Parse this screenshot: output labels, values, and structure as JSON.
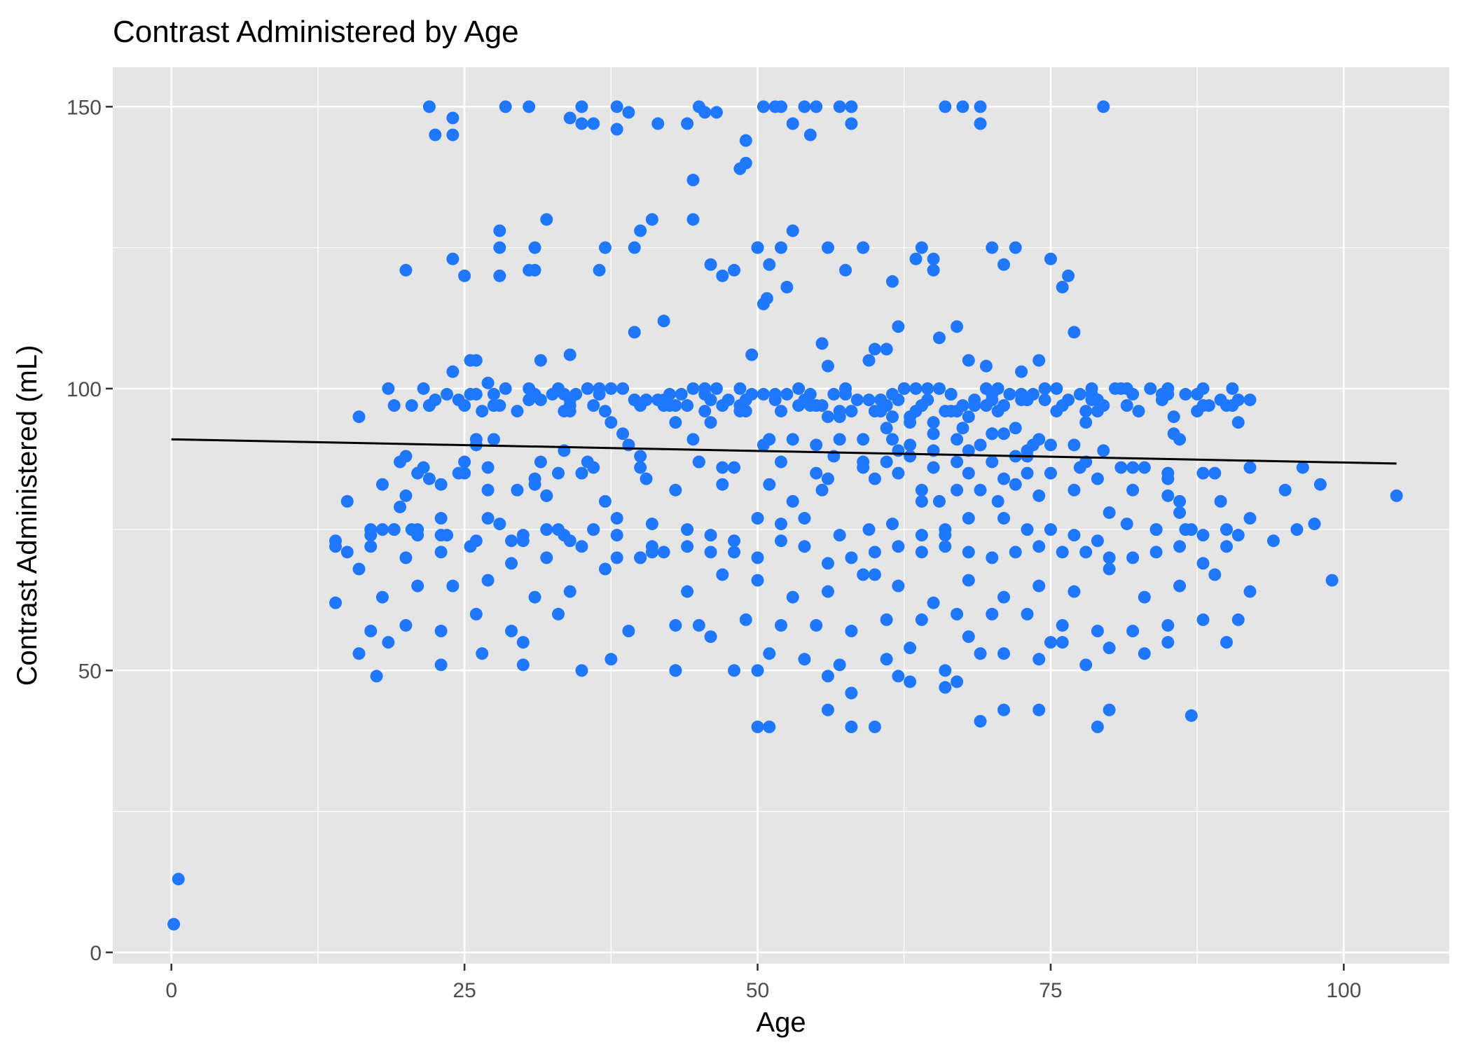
{
  "chart_data": {
    "type": "scatter",
    "title": "Contrast Administered by Age",
    "xlabel": "Age",
    "ylabel": "Contrast Administered (mL)",
    "xlim": [
      -5,
      109
    ],
    "ylim": [
      -2,
      157
    ],
    "xticks": [
      0,
      25,
      50,
      75,
      100
    ],
    "xtick_labels": [
      "0",
      "25",
      "50",
      "75",
      "100"
    ],
    "yticks": [
      0,
      50,
      100,
      150
    ],
    "ytick_labels": [
      "0",
      "50",
      "100",
      "150"
    ],
    "grid": true,
    "legend": "none",
    "colors": {
      "point": "#1f78ff",
      "panel": "#e5e5e5",
      "grid": "#ffffff",
      "trend": "#000000"
    },
    "trend_line": {
      "x": [
        0,
        104.5
      ],
      "y": [
        91,
        86.7
      ]
    },
    "points_x": [
      0.2,
      0.6,
      14,
      15,
      16,
      17,
      17.5,
      18,
      18.5,
      19,
      19.5,
      20,
      20.5,
      21,
      22,
      22.5,
      23,
      23.5,
      24,
      25,
      25.5,
      26,
      26.5,
      27,
      28,
      28.5,
      29,
      30,
      30.5,
      31,
      31.5,
      32,
      33,
      34,
      35,
      35.5,
      36,
      37,
      37.5,
      38,
      39,
      39.5,
      40,
      41,
      41.5,
      42,
      43,
      44,
      44.5,
      45,
      46,
      46.5,
      47,
      48,
      48.5,
      49,
      50,
      50.5,
      51,
      52,
      52.5,
      53,
      54,
      54.5,
      55,
      55.5,
      56,
      57,
      57.5,
      58,
      59,
      59.5,
      60,
      61,
      61.5,
      62,
      63,
      63.5,
      64,
      65,
      65.5,
      66,
      67,
      67.5,
      68,
      69,
      69.5,
      70,
      71,
      72,
      72.5,
      73,
      74,
      74.5,
      75,
      76,
      76.5,
      77,
      78,
      78.5,
      79,
      80,
      81,
      82,
      83,
      84,
      85,
      86,
      87,
      88,
      89,
      90,
      91,
      92,
      20,
      24,
      28,
      30.5,
      35,
      36.5,
      39.5,
      45.5,
      50,
      52,
      53,
      56,
      58,
      59,
      65,
      66,
      79.5,
      22,
      24,
      34,
      36,
      42,
      44,
      48.5,
      53.5,
      55,
      57,
      60,
      69,
      51.5,
      50.5,
      49.5,
      70,
      33,
      44.5,
      41,
      50.8,
      28,
      31,
      38,
      49,
      51,
      55,
      59,
      62,
      65,
      70,
      72,
      86,
      24,
      26,
      27,
      31.5,
      34,
      39,
      45.5,
      47,
      53,
      57,
      61.5,
      65,
      68,
      77,
      78,
      16,
      37.5,
      43,
      46,
      54,
      56,
      60,
      63,
      67,
      71,
      73,
      77.5,
      85,
      20,
      29.5,
      31,
      40,
      45,
      48,
      53,
      55.5,
      60,
      62,
      64,
      65.5,
      68,
      70.5,
      74,
      86,
      23,
      27,
      31,
      32,
      35,
      37,
      40.5,
      43,
      47,
      51,
      56,
      59,
      61,
      64,
      69,
      72,
      77,
      81,
      85,
      89.5,
      95,
      96.5,
      98,
      104.5,
      15,
      18,
      20,
      22,
      25,
      26,
      27.5,
      30,
      32,
      33.5,
      36,
      38,
      41,
      44,
      46,
      48,
      50,
      52,
      54,
      57,
      59.5,
      61.5,
      64,
      66,
      68,
      71,
      73,
      75,
      77,
      79,
      81.5,
      84,
      86.5,
      88,
      90,
      92,
      94,
      96,
      97.5,
      17,
      19,
      21,
      23,
      25.5,
      28,
      30,
      32,
      34,
      36,
      38,
      40,
      42,
      44,
      46,
      48,
      50,
      52,
      54,
      56,
      58,
      60,
      62,
      64,
      66,
      68,
      70,
      72,
      74,
      76,
      78,
      80,
      82,
      84,
      86,
      88,
      90,
      91,
      14,
      17,
      20,
      23,
      26,
      29,
      32,
      35,
      38,
      41,
      44,
      47,
      50,
      53,
      56,
      59,
      62,
      65,
      68,
      71,
      74,
      77,
      80,
      83,
      86,
      89,
      92,
      99,
      14,
      18,
      21,
      24,
      27,
      31,
      34,
      37,
      40,
      43,
      46,
      49,
      52,
      55,
      58,
      61,
      64,
      67,
      70,
      73,
      76,
      79,
      82,
      85,
      88,
      91,
      17,
      23,
      26,
      29,
      33,
      39,
      45,
      51,
      54,
      57,
      61,
      63,
      66,
      68,
      69,
      71,
      74,
      75,
      76,
      78,
      80,
      83,
      85,
      90,
      16,
      23,
      30,
      35,
      43,
      48,
      50,
      56,
      58,
      62,
      63,
      66,
      67,
      69,
      71,
      74,
      79,
      80,
      87,
      50,
      51,
      56,
      58,
      60,
      65,
      70,
      75,
      85,
      21,
      25,
      27,
      33,
      36,
      40,
      45,
      47,
      52,
      55,
      59,
      63,
      67,
      73,
      78,
      82,
      88,
      92,
      19.5,
      21.5,
      24.5,
      27.5,
      30.5,
      33.5,
      36.5,
      39.5,
      42.5,
      45.5,
      48.5,
      51.5,
      54.5,
      57.5,
      60.5,
      63.5,
      66.5,
      69.5,
      72.5,
      75.5,
      78.5,
      81.5,
      84.5,
      87.5,
      90.5,
      26,
      34,
      42,
      49,
      57,
      64,
      71,
      79,
      19,
      22,
      25,
      28,
      31,
      34,
      37,
      40,
      43,
      46,
      49,
      52,
      55,
      58,
      61,
      64,
      67,
      70,
      73,
      76,
      79,
      82,
      85,
      88,
      91,
      20.5,
      23.5,
      26.5,
      29.5,
      32.5,
      35.5,
      38.5,
      41.5,
      44.5,
      47.5,
      50.5,
      53.5,
      56.5,
      59.5,
      62.5,
      65.5,
      68.5,
      71.5,
      74.5,
      77.5,
      80.5,
      83.5,
      86.5,
      89.5,
      18.5,
      21.5,
      24.5,
      27.5,
      30.5,
      33.5,
      36.5,
      39.5,
      42.5,
      45.5,
      48.5,
      51.5,
      54.5,
      57.5,
      60.5,
      63.5,
      66.5,
      69.5,
      72.5,
      75.5,
      78.5,
      81.5,
      84.5,
      87.5,
      90.5,
      22.5,
      25.5,
      28.5,
      31.5,
      34.5,
      37.5,
      40.5,
      43.5,
      46.5,
      49.5,
      52.5,
      55.5,
      58.5,
      61.5,
      64.5,
      67.5,
      70.5,
      73.5,
      76.5,
      79.5,
      82.5,
      85.5,
      88.5,
      60.5,
      62.5,
      64.5,
      66.5,
      68.5,
      70.5,
      72.5,
      62,
      64,
      66,
      68,
      70,
      72,
      74,
      61,
      63,
      65,
      67,
      69,
      71,
      73,
      75,
      27.5,
      33.5,
      38.5,
      44.5,
      50.5,
      56.5,
      61.5,
      67.5,
      73.5,
      79.5,
      85.5
    ],
    "points_y": [
      5,
      13,
      73,
      71,
      68,
      75,
      49,
      75,
      55,
      75,
      79,
      58,
      75,
      74,
      97,
      145,
      77,
      74,
      148,
      120,
      105,
      90,
      53,
      77,
      125,
      150,
      69,
      51,
      150,
      121,
      87,
      130,
      75,
      106,
      150,
      87,
      147,
      125,
      52,
      150,
      149,
      110,
      128,
      72,
      147,
      112,
      50,
      147,
      130,
      150,
      122,
      149,
      120,
      121,
      139,
      140,
      125,
      150,
      122,
      150,
      118,
      147,
      150,
      145,
      150,
      108,
      104,
      150,
      121,
      150,
      125,
      105,
      67,
      107,
      119,
      111,
      95,
      123,
      125,
      123,
      109,
      74,
      111,
      150,
      105,
      147,
      104,
      125,
      122,
      125,
      103,
      98,
      105,
      98,
      123,
      118,
      120,
      110,
      96,
      100,
      84,
      78,
      100,
      82,
      86,
      75,
      100,
      78,
      75,
      100,
      85,
      97,
      94,
      98,
      121,
      123,
      120,
      121,
      147,
      121,
      125,
      149,
      125,
      125,
      128,
      125,
      147,
      125,
      121,
      150,
      150,
      150,
      145,
      148,
      97,
      98,
      97,
      97,
      97,
      97,
      95,
      107,
      150,
      150,
      115,
      106,
      99,
      100,
      137,
      130,
      116,
      128,
      125,
      146,
      144,
      91,
      90,
      91,
      89,
      94,
      92,
      93,
      91,
      103,
      105,
      101,
      105,
      96,
      90,
      96,
      97,
      91,
      91,
      95,
      92,
      95,
      90,
      94,
      95,
      94,
      94,
      94,
      98,
      95,
      96,
      94,
      82,
      84,
      88,
      86,
      84,
      88,
      82,
      83,
      86,
      87,
      86,
      80,
      82,
      84,
      85,
      82,
      80,
      85,
      80,
      81,
      80,
      83,
      82,
      84,
      81,
      85,
      80,
      84,
      82,
      83,
      83,
      84,
      87,
      87,
      80,
      82,
      83,
      82,
      86,
      81,
      80,
      82,
      86,
      83,
      81,
      80,
      83,
      81,
      84,
      85,
      91,
      97,
      74,
      81,
      74,
      75,
      77,
      76,
      75,
      74,
      73,
      77,
      76,
      77,
      74,
      75,
      76,
      74,
      75,
      77,
      77,
      75,
      75,
      74,
      73,
      76,
      75,
      75,
      74,
      75,
      77,
      73,
      75,
      76,
      74,
      75,
      75,
      74,
      72,
      76,
      73,
      75,
      73,
      75,
      74,
      70,
      71,
      72,
      71,
      71,
      70,
      73,
      72,
      69,
      70,
      71,
      72,
      71,
      72,
      71,
      70,
      71,
      72,
      71,
      71,
      70,
      70,
      71,
      72,
      69,
      72,
      74,
      72,
      72,
      70,
      71,
      73,
      73,
      70,
      72,
      70,
      71,
      64,
      67,
      66,
      63,
      64,
      67,
      65,
      62,
      66,
      63,
      65,
      64,
      68,
      63,
      65,
      67,
      64,
      66,
      62,
      63,
      65,
      65,
      66,
      63,
      64,
      68,
      70,
      58,
      56,
      59,
      58,
      58,
      57,
      59,
      59,
      60,
      60,
      60,
      58,
      57,
      57,
      58,
      59,
      59,
      57,
      57,
      60,
      57,
      60,
      57,
      58,
      53,
      52,
      51,
      52,
      54,
      50,
      56,
      53,
      53,
      52,
      55,
      55,
      51,
      54,
      53,
      55,
      55,
      53,
      51,
      55,
      50,
      50,
      50,
      50,
      49,
      46,
      49,
      48,
      47,
      48,
      41,
      43,
      43,
      40,
      43,
      42,
      40,
      40,
      43,
      40,
      40,
      86,
      87,
      85,
      85,
      85,
      87,
      86,
      85,
      86,
      88,
      87,
      86,
      87,
      85,
      86,
      88,
      87,
      85,
      87,
      86,
      85,
      86,
      87,
      86,
      85,
      97,
      98,
      96,
      99,
      98,
      97,
      99,
      96,
      98,
      97,
      99,
      98,
      96,
      99,
      97,
      98,
      96,
      99,
      97,
      98,
      96,
      97,
      99,
      98,
      97,
      96,
      96,
      97,
      97,
      98,
      97,
      97,
      97,
      97,
      99,
      97,
      96,
      97,
      97,
      98,
      98,
      96,
      97,
      96,
      97,
      97,
      96,
      98,
      98,
      97,
      96,
      99,
      99,
      97,
      98,
      97,
      99,
      96,
      96,
      99,
      100,
      100,
      98,
      100,
      98,
      99,
      100,
      99,
      98,
      100,
      100,
      98,
      99,
      100,
      99,
      100,
      100,
      99,
      98,
      100,
      100,
      98,
      99,
      100,
      99,
      100,
      98,
      99,
      100,
      100,
      99,
      99,
      100,
      98,
      100,
      99,
      100,
      99,
      100,
      98,
      100,
      99,
      99,
      100,
      98,
      99,
      100,
      98,
      99,
      100,
      98,
      99,
      100,
      99,
      99,
      97,
      98,
      99,
      100,
      97,
      96,
      99,
      98,
      97,
      96,
      95,
      97,
      96,
      100,
      98,
      96,
      97,
      100,
      99,
      98,
      97,
      96,
      89,
      92,
      88,
      91,
      93,
      90,
      89,
      91,
      90,
      92,
      89,
      90,
      91,
      89,
      92,
      91,
      90,
      88,
      91,
      93,
      90,
      89,
      92,
      91,
      90
    ]
  }
}
